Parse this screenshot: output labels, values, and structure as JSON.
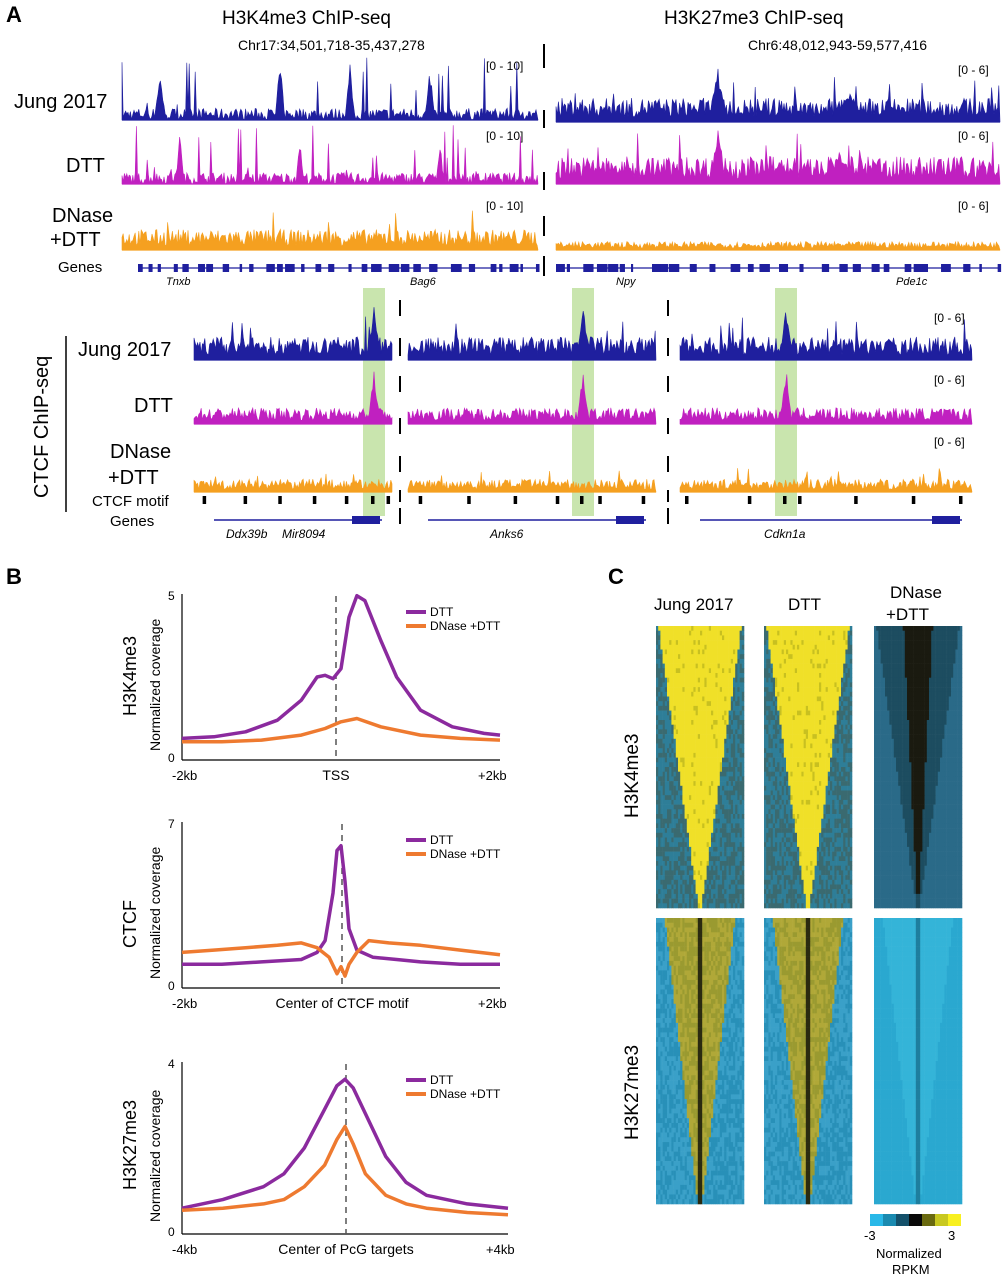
{
  "panel_labels": {
    "a": "A",
    "b": "B",
    "c": "C"
  },
  "colors": {
    "jung": "#1f1f9e",
    "dtt": "#c020c0",
    "dnase": "#f5a020",
    "dtt_line": "#8b2a9e",
    "dnase_line": "#ee7a30",
    "highlight": "#bfe0a0",
    "motif": "#000000"
  },
  "panel_a": {
    "h3k4_title": "H3K4me3 ChIP-seq",
    "h3k27_title": "H3K27me3 ChIP-seq",
    "h3k4_coords": "Chr17:34,501,718-35,437,278",
    "h3k27_coords": "Chr6:48,012,943-59,577,416",
    "track_labels": [
      "Jung 2017",
      "DTT",
      "DNase",
      "+DTT",
      "Genes"
    ],
    "h3k4_ranges": [
      "[0 - 10]",
      "[0 - 10]",
      "[0 - 10]"
    ],
    "h3k27_ranges": [
      "[0 - 6]",
      "[0 - 6]",
      "[0 - 6]"
    ],
    "genes_left": [
      "Tnxb",
      "Bag6"
    ],
    "genes_right": [
      "Npy",
      "Pde1c"
    ],
    "ctcf_title": "CTCF ChIP-seq",
    "ctcf_labels": [
      "Jung 2017",
      "DTT",
      "DNase",
      "+DTT",
      "CTCF motif",
      "Genes"
    ],
    "ctcf_ranges": [
      "[0 - 6]",
      "[0 - 6]",
      "[0 - 6]"
    ],
    "ctcf_genes": [
      "Ddx39b",
      "Mir8094",
      "Anks6",
      "Cdkn1a"
    ]
  },
  "chart_data": [
    {
      "type": "line",
      "panel": "B",
      "ylabel_outer": "H3K4me3",
      "ylabel": "Normalized coverage",
      "xlabel": "TSS",
      "x_tick_labels": [
        "-2kb",
        "+2kb"
      ],
      "y_tick_labels": [
        "0",
        "5"
      ],
      "xlim": [
        -2,
        2
      ],
      "ylim": [
        0,
        5
      ],
      "series": [
        {
          "name": "DTT",
          "x": [
            -2.0,
            -1.6,
            -1.2,
            -0.8,
            -0.5,
            -0.3,
            -0.2,
            -0.1,
            0.0,
            0.1,
            0.2,
            0.3,
            0.5,
            0.7,
            1.0,
            1.4,
            1.8,
            2.0
          ],
          "y": [
            0.65,
            0.7,
            0.85,
            1.2,
            1.8,
            2.5,
            2.55,
            2.45,
            2.75,
            4.3,
            4.95,
            4.8,
            3.6,
            2.5,
            1.5,
            1.0,
            0.8,
            0.75
          ]
        },
        {
          "name": "DNase +DTT",
          "x": [
            -2.0,
            -1.5,
            -1.0,
            -0.5,
            -0.2,
            0.0,
            0.2,
            0.5,
            1.0,
            1.5,
            2.0
          ],
          "y": [
            0.55,
            0.55,
            0.6,
            0.75,
            0.95,
            1.15,
            1.25,
            1.0,
            0.75,
            0.65,
            0.6
          ]
        }
      ]
    },
    {
      "type": "line",
      "panel": "B",
      "ylabel_outer": "CTCF",
      "ylabel": "Normalized coverage",
      "xlabel": "Center of CTCF motif",
      "x_tick_labels": [
        "-2kb",
        "+2kb"
      ],
      "y_tick_labels": [
        "0",
        "7"
      ],
      "xlim": [
        -2,
        2
      ],
      "ylim": [
        0,
        7
      ],
      "series": [
        {
          "name": "DTT",
          "x": [
            -2.0,
            -1.5,
            -1.0,
            -0.5,
            -0.3,
            -0.2,
            -0.1,
            -0.05,
            0.0,
            0.05,
            0.1,
            0.2,
            0.4,
            0.7,
            1.0,
            1.5,
            2.0
          ],
          "y": [
            1.0,
            1.0,
            1.1,
            1.2,
            1.5,
            2.0,
            4.0,
            5.8,
            6.0,
            4.5,
            2.5,
            1.6,
            1.3,
            1.2,
            1.1,
            1.0,
            1.0
          ]
        },
        {
          "name": "DNase +DTT",
          "x": [
            -2.0,
            -1.6,
            -1.2,
            -0.8,
            -0.5,
            -0.3,
            -0.15,
            -0.05,
            0.0,
            0.05,
            0.1,
            0.2,
            0.35,
            0.6,
            1.0,
            1.5,
            2.0
          ],
          "y": [
            1.5,
            1.6,
            1.7,
            1.8,
            1.9,
            1.7,
            1.3,
            0.6,
            0.9,
            0.5,
            1.0,
            1.5,
            2.0,
            1.9,
            1.8,
            1.6,
            1.4
          ]
        }
      ]
    },
    {
      "type": "line",
      "panel": "B",
      "ylabel_outer": "H3K27me3",
      "ylabel": "Normalized coverage",
      "xlabel": "Center of PcG targets",
      "x_tick_labels": [
        "-4kb",
        "+4kb"
      ],
      "y_tick_labels": [
        "0",
        "4"
      ],
      "xlim": [
        -4,
        4
      ],
      "ylim": [
        0,
        4
      ],
      "series": [
        {
          "name": "DTT",
          "x": [
            -4.0,
            -3.0,
            -2.0,
            -1.5,
            -1.0,
            -0.5,
            -0.2,
            0.0,
            0.2,
            0.5,
            1.0,
            1.5,
            2.0,
            3.0,
            4.0
          ],
          "y": [
            0.6,
            0.8,
            1.1,
            1.4,
            2.0,
            2.9,
            3.45,
            3.6,
            3.4,
            2.8,
            1.8,
            1.2,
            0.9,
            0.7,
            0.6
          ]
        },
        {
          "name": "DNase +DTT",
          "x": [
            -4.0,
            -3.0,
            -2.0,
            -1.5,
            -1.0,
            -0.5,
            -0.2,
            0.0,
            0.2,
            0.5,
            1.0,
            1.5,
            2.0,
            3.0,
            4.0
          ],
          "y": [
            0.55,
            0.6,
            0.7,
            0.8,
            1.1,
            1.6,
            2.2,
            2.5,
            2.1,
            1.4,
            0.9,
            0.7,
            0.6,
            0.5,
            0.45
          ]
        }
      ]
    },
    {
      "type": "heatmap",
      "panel": "C",
      "columns": [
        "Jung 2017",
        "DTT",
        "DNase",
        "+DTT"
      ],
      "rows": [
        "H3K4me3",
        "H3K27me3"
      ],
      "colorbar_min": "-3",
      "colorbar_max": "3",
      "colorbar_label": [
        "Normalized",
        "RPKM"
      ],
      "colorbar_colors": [
        "#29b8e8",
        "#1a8ab0",
        "#14506a",
        "#0a0a0a",
        "#6a6a10",
        "#c8c820",
        "#f8f020"
      ]
    }
  ]
}
